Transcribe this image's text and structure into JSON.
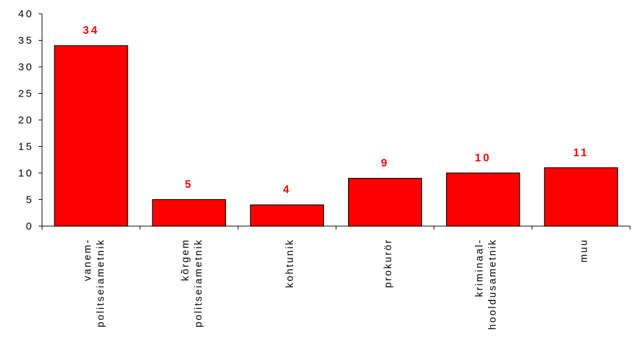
{
  "chart_data": {
    "type": "bar",
    "categories": [
      [
        "vanem-",
        "politseiametnik"
      ],
      [
        "kõrgem",
        "politseiametnik"
      ],
      [
        "kohtunik"
      ],
      [
        "prokurör"
      ],
      [
        "kriminaal-",
        "hooldusametnik"
      ],
      [
        "muu"
      ]
    ],
    "values": [
      34,
      5,
      4,
      9,
      10,
      11
    ],
    "data_labels": [
      "34",
      "5",
      "4",
      "9",
      "10",
      "11"
    ],
    "title": "",
    "xlabel": "",
    "ylabel": "",
    "ylim": [
      0,
      40
    ],
    "yticks": [
      0,
      5,
      10,
      15,
      20,
      25,
      30,
      35,
      40
    ],
    "grid": false,
    "legend": "none",
    "colors": {
      "bar_fill": "#FF0000",
      "bar_stroke": "#000000",
      "data_label": "#FF0000",
      "axis": "#000000"
    }
  }
}
